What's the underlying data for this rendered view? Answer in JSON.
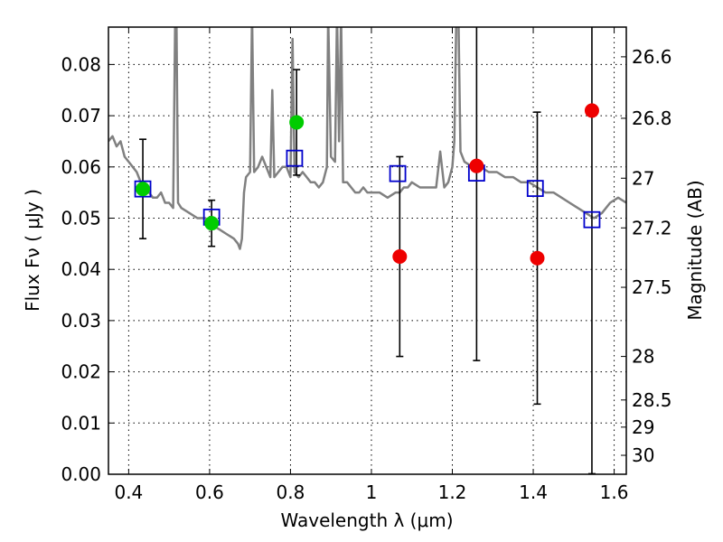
{
  "chart_data": {
    "type": "scatter",
    "title": "",
    "xlabel": "Wavelength  λ (μm)",
    "ylabel": "Flux  Fν  ( μJy )",
    "y2label": "Magnitude (AB)",
    "xlim": [
      0.35,
      1.63
    ],
    "ylim": [
      0.0,
      0.0873
    ],
    "grid": true,
    "x_ticks": [
      0.4,
      0.6,
      0.8,
      1.0,
      1.2,
      1.4,
      1.6
    ],
    "x_tick_labels": [
      "0.4",
      "0.6",
      "0.8",
      "1",
      "1.2",
      "1.4",
      "1.6"
    ],
    "y_ticks": [
      0.0,
      0.01,
      0.02,
      0.03,
      0.04,
      0.05,
      0.06,
      0.07,
      0.08
    ],
    "y_tick_labels": [
      "0.00",
      "0.01",
      "0.02",
      "0.03",
      "0.04",
      "0.05",
      "0.06",
      "0.07",
      "0.08"
    ],
    "mag_ticks": [
      {
        "label": "26.6",
        "flux": 0.0815
      },
      {
        "label": "26.8",
        "flux": 0.0695
      },
      {
        "label": "27",
        "flux": 0.0578
      },
      {
        "label": "27.2",
        "flux": 0.0481
      },
      {
        "label": "27.5",
        "flux": 0.0365
      },
      {
        "label": "28",
        "flux": 0.023
      },
      {
        "label": "28.5",
        "flux": 0.0145
      },
      {
        "label": "29",
        "flux": 0.0092
      },
      {
        "label": "30",
        "flux": 0.0037
      }
    ],
    "series": [
      {
        "type": "line",
        "color": "#808080",
        "x": [
          0.35,
          0.36,
          0.37,
          0.38,
          0.39,
          0.4,
          0.41,
          0.42,
          0.43,
          0.44,
          0.45,
          0.46,
          0.47,
          0.48,
          0.49,
          0.5,
          0.51,
          0.515,
          0.518,
          0.522,
          0.53,
          0.55,
          0.57,
          0.59,
          0.6,
          0.62,
          0.64,
          0.66,
          0.67,
          0.675,
          0.68,
          0.685,
          0.69,
          0.7,
          0.705,
          0.71,
          0.72,
          0.73,
          0.74,
          0.75,
          0.755,
          0.76,
          0.77,
          0.78,
          0.79,
          0.8,
          0.805,
          0.81,
          0.82,
          0.83,
          0.84,
          0.85,
          0.86,
          0.87,
          0.88,
          0.89,
          0.893,
          0.9,
          0.91,
          0.915,
          0.92,
          0.925,
          0.93,
          0.94,
          0.95,
          0.96,
          0.97,
          0.98,
          0.99,
          1.0,
          1.02,
          1.04,
          1.06,
          1.07,
          1.08,
          1.09,
          1.1,
          1.12,
          1.14,
          1.16,
          1.17,
          1.18,
          1.19,
          1.2,
          1.205,
          1.21,
          1.215,
          1.22,
          1.23,
          1.25,
          1.27,
          1.29,
          1.31,
          1.33,
          1.35,
          1.37,
          1.39,
          1.41,
          1.43,
          1.45,
          1.47,
          1.49,
          1.51,
          1.53,
          1.55,
          1.57,
          1.59,
          1.61,
          1.63
        ],
        "y": [
          0.065,
          0.066,
          0.064,
          0.065,
          0.062,
          0.061,
          0.06,
          0.059,
          0.057,
          0.056,
          0.055,
          0.054,
          0.054,
          0.055,
          0.053,
          0.053,
          0.052,
          0.09,
          0.09,
          0.053,
          0.052,
          0.051,
          0.05,
          0.05,
          0.049,
          0.048,
          0.047,
          0.046,
          0.045,
          0.044,
          0.046,
          0.055,
          0.058,
          0.059,
          0.09,
          0.059,
          0.06,
          0.062,
          0.06,
          0.058,
          0.075,
          0.058,
          0.059,
          0.06,
          0.06,
          0.058,
          0.085,
          0.059,
          0.058,
          0.059,
          0.058,
          0.057,
          0.057,
          0.056,
          0.057,
          0.06,
          0.09,
          0.062,
          0.061,
          0.09,
          0.065,
          0.09,
          0.057,
          0.057,
          0.056,
          0.055,
          0.055,
          0.056,
          0.055,
          0.055,
          0.055,
          0.054,
          0.055,
          0.055,
          0.056,
          0.056,
          0.057,
          0.056,
          0.056,
          0.056,
          0.063,
          0.056,
          0.057,
          0.06,
          0.065,
          0.09,
          0.09,
          0.063,
          0.061,
          0.06,
          0.06,
          0.059,
          0.059,
          0.058,
          0.058,
          0.057,
          0.057,
          0.056,
          0.055,
          0.055,
          0.054,
          0.053,
          0.052,
          0.051,
          0.05,
          0.051,
          0.053,
          0.054,
          0.053
        ]
      },
      {
        "type": "marker",
        "marker": "square-open",
        "color": "#0000cc",
        "x": [
          0.435,
          0.605,
          0.81,
          1.065,
          1.26,
          1.405,
          1.545
        ],
        "y": [
          0.0557,
          0.0502,
          0.0617,
          0.0587,
          0.0588,
          0.0558,
          0.0497
        ]
      },
      {
        "type": "marker",
        "marker": "circle",
        "color": "#00cc00",
        "x": [
          0.435,
          0.605,
          0.815
        ],
        "y": [
          0.0557,
          0.049,
          0.0687
        ],
        "yerr": [
          0.0097,
          0.0045,
          0.0103
        ]
      },
      {
        "type": "marker",
        "marker": "circle",
        "color": "#ee0000",
        "x": [
          1.07,
          1.26,
          1.41,
          1.545
        ],
        "y": [
          0.0425,
          0.0602,
          0.0422,
          0.071
        ],
        "yerr_low": [
          0.0195,
          0.038,
          0.0285,
          0.0709
        ],
        "yerr_high": [
          0.0195,
          0.028,
          0.0285,
          0.0195
        ]
      }
    ]
  }
}
